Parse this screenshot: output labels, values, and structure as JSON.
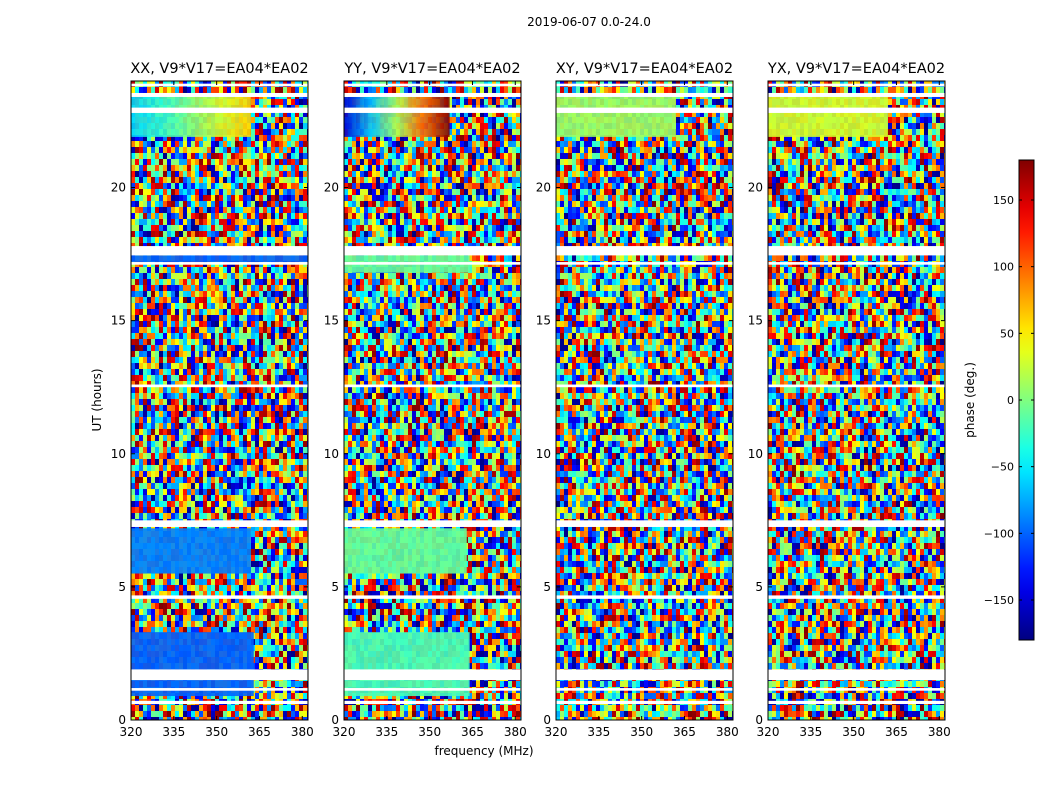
{
  "chart_data": {
    "type": "heatmap",
    "suptitle": "2019-06-07 0.0-24.0",
    "xlabel": "frequency (MHz)",
    "ylabel": "UT (hours)",
    "xlim": [
      320,
      382
    ],
    "ylim": [
      0,
      24
    ],
    "xticks": [
      320,
      335,
      350,
      365,
      380
    ],
    "yticks": [
      0,
      5,
      10,
      15,
      20
    ],
    "panels": [
      {
        "name": "XX",
        "title": "XX, V9*V17=EA04*EA02"
      },
      {
        "name": "YY",
        "title": "YY, V9*V17=EA04*EA02"
      },
      {
        "name": "XY",
        "title": "XY, V9*V17=EA04*EA02"
      },
      {
        "name": "YX",
        "title": "YX, V9*V17=EA04*EA02"
      }
    ],
    "colorbar": {
      "label": "phase (deg.)",
      "range": [
        -180,
        180
      ],
      "ticks": [
        150,
        100,
        50,
        0,
        -50,
        -100,
        -150
      ],
      "tick_labels": [
        "150",
        "100",
        "50",
        "0",
        "−50",
        "−100",
        "−150"
      ],
      "colormap": "jet"
    },
    "flagged_bands_hours": [
      [
        0.6,
        0.72
      ],
      [
        1.1,
        1.2
      ],
      [
        1.5,
        1.9
      ],
      [
        4.55,
        4.68
      ],
      [
        7.25,
        7.5
      ],
      [
        12.5,
        12.6
      ],
      [
        17.1,
        17.2
      ],
      [
        17.45,
        17.8
      ],
      [
        22.8,
        23.0
      ],
      [
        23.4,
        23.55
      ],
      [
        23.8,
        23.9
      ]
    ],
    "features": [
      {
        "panel": "XX",
        "t": [
          0.9,
          3.3
        ],
        "f_max": 363,
        "phase": -100
      },
      {
        "panel": "XX",
        "t": [
          5.5,
          7.2
        ],
        "f_max": 362,
        "phase": -90
      },
      {
        "panel": "XX",
        "t": [
          17.2,
          17.45
        ],
        "f_max": 382,
        "phase": -100
      },
      {
        "panel": "XX",
        "t": [
          21.9,
          23.4
        ],
        "f_max": 362,
        "gradient": [
          -60,
          60
        ]
      },
      {
        "panel": "YY",
        "t": [
          0.9,
          3.3
        ],
        "f_max": 364,
        "phase": -20
      },
      {
        "panel": "YY",
        "t": [
          5.5,
          7.2
        ],
        "f_max": 363,
        "phase": -10
      },
      {
        "panel": "YY",
        "t": [
          16.8,
          17.45
        ],
        "f_max": 364,
        "phase": -10
      },
      {
        "panel": "YY",
        "t": [
          21.9,
          23.4
        ],
        "f_max": 357,
        "gradient": [
          -150,
          180
        ]
      },
      {
        "panel": "XY",
        "t": [
          21.9,
          23.4
        ],
        "f_max": 362,
        "phase": 10
      },
      {
        "panel": "YX",
        "t": [
          21.9,
          23.4
        ],
        "f_max": 362,
        "phase": 30
      }
    ]
  }
}
